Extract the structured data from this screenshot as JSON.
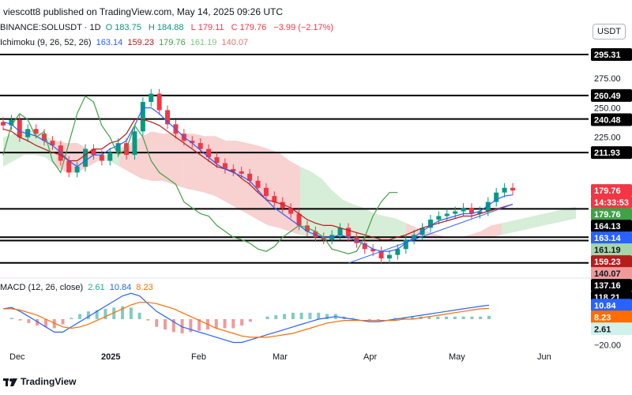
{
  "header": {
    "published": "viescott8 published on TradingView.com, May 14, 2025 09:26 UTC",
    "symbol": "BINANCE:SOLUSDT · 1D",
    "ohlc": {
      "o_label": "O",
      "o": "183.75",
      "h_label": "H",
      "h": "184.88",
      "l_label": "L",
      "l": "179.11",
      "c_label": "C",
      "c": "179.76",
      "chg": "−3.99 (−2.17%)"
    },
    "ichimoku": {
      "label": "Ichimoku (9, 26, 52, 26)",
      "v1": "163.14",
      "v2": "159.23",
      "v3": "179.76",
      "v4": "161.19",
      "v5": "140.07"
    },
    "currency": "USDT"
  },
  "colors": {
    "up": "#089981",
    "down": "#f23645",
    "conversion": "#2962ff",
    "base": "#b71c1c",
    "lagging": "#43a047",
    "spanA": "#a5d6a7",
    "spanB": "#ef9a9a",
    "macd": "#2962ff",
    "signal": "#ff6d00",
    "hline": "#000000",
    "trend": "#2962ff"
  },
  "chart_data": [
    {
      "type": "candlestick",
      "title": "BINANCE:SOLUSDT · 1D",
      "x_labels": [
        "Dec",
        "2025",
        "Feb",
        "Mar",
        "Apr",
        "May",
        "Jun"
      ],
      "y_ticks": [
        275,
        250,
        225
      ],
      "ylim": [
        110,
        300
      ],
      "horizontal_levels": [
        295.31,
        260.49,
        240.48,
        211.93,
        164.13,
        140.07,
        137.16,
        118.21
      ],
      "price_labels": [
        {
          "text": "295.31",
          "value": 295.31,
          "color": "#000000"
        },
        {
          "text": "275.00",
          "value": 275,
          "color": "none"
        },
        {
          "text": "260.49",
          "value": 260.49,
          "color": "#000000"
        },
        {
          "text": "250.00",
          "value": 250,
          "color": "none"
        },
        {
          "text": "240.48",
          "value": 240.48,
          "color": "#000000"
        },
        {
          "text": "225.00",
          "value": 225,
          "color": "none"
        },
        {
          "text": "211.93",
          "value": 211.93,
          "color": "#000000"
        },
        {
          "text": "179.76",
          "value": 179.76,
          "color": "#f23645"
        },
        {
          "text": "14:33:53",
          "value": 179.76,
          "color": "#f23645"
        },
        {
          "text": "179.76",
          "value": 179.76,
          "color": "#43a047"
        },
        {
          "text": "164.13",
          "value": 164.13,
          "color": "#000000"
        },
        {
          "text": "163.14",
          "value": 163.14,
          "color": "#2962ff"
        },
        {
          "text": "161.19",
          "value": 161.19,
          "color": "#a5d6a7"
        },
        {
          "text": "159.23",
          "value": 159.23,
          "color": "#b71c1c"
        },
        {
          "text": "140.07",
          "value": 140.07,
          "color": "#ef9a9a"
        },
        {
          "text": "137.16",
          "value": 137.16,
          "color": "#000000"
        },
        {
          "text": "118.21",
          "value": 118.21,
          "color": "#000000"
        }
      ],
      "close_series": [
        235,
        240,
        225,
        232,
        228,
        222,
        218,
        205,
        195,
        200,
        215,
        210,
        205,
        212,
        220,
        210,
        230,
        255,
        262,
        248,
        236,
        228,
        222,
        220,
        215,
        208,
        203,
        198,
        196,
        194,
        188,
        182,
        175,
        170,
        165,
        160,
        150,
        145,
        140,
        138,
        142,
        148,
        140,
        135,
        130,
        128,
        122,
        125,
        130,
        138,
        142,
        148,
        155,
        158,
        160,
        162,
        165,
        160,
        162,
        170,
        178,
        182,
        179.76
      ],
      "ichimoku": {
        "conversion": [
          238,
          236,
          230,
          228,
          226,
          222,
          218,
          212,
          205,
          200,
          205,
          210,
          210,
          215,
          218,
          222,
          235,
          250,
          250,
          245,
          238,
          232,
          225,
          220,
          214,
          208,
          202,
          198,
          195,
          192,
          188,
          180,
          172,
          165,
          160,
          155,
          150,
          145,
          142,
          140,
          140,
          142,
          140,
          137,
          134,
          130,
          128,
          128,
          130,
          135,
          140,
          145,
          150,
          154,
          156,
          158,
          160,
          160,
          162,
          167,
          172,
          175,
          176
        ],
        "base": [
          232,
          230,
          225,
          222,
          218,
          215,
          212,
          210,
          205,
          205,
          210,
          215,
          215,
          220,
          222,
          228,
          240,
          240,
          238,
          235,
          230,
          225,
          220,
          215,
          210,
          205,
          200,
          198,
          196,
          190,
          185,
          178,
          172,
          170,
          168,
          165,
          160,
          155,
          152,
          150,
          150,
          148,
          146,
          144,
          142,
          140,
          138,
          138,
          140,
          142,
          145,
          148,
          150,
          152,
          154,
          156,
          158,
          158,
          160,
          162,
          164,
          166,
          168
        ],
        "lagging": [
          210,
          235,
          245,
          240,
          225,
          230,
          205,
          195,
          220,
          245,
          260,
          255,
          235,
          225,
          210,
          215,
          235,
          225,
          205,
          195,
          190,
          185,
          170,
          165,
          160,
          158,
          150,
          145,
          140,
          138,
          135,
          130,
          128,
          132,
          140,
          145,
          150,
          148,
          145,
          140,
          130,
          128,
          126,
          128,
          140,
          158,
          170,
          178,
          178,
          null,
          null,
          null,
          null,
          null,
          null,
          null,
          null,
          null,
          null,
          null,
          null,
          null,
          null
        ],
        "spanA": [
          null,
          null,
          null,
          null,
          null,
          null,
          null,
          null,
          null,
          null,
          null,
          null,
          null,
          null,
          null,
          null,
          null,
          null,
          null,
          null,
          null,
          null,
          null,
          null,
          null,
          null,
          null,
          null,
          null,
          null,
          null,
          null,
          null,
          null,
          null,
          null,
          null,
          null,
          null,
          null,
          null,
          null,
          null,
          null,
          null,
          null,
          null,
          null,
          null,
          null,
          null,
          null,
          null,
          null,
          null,
          null,
          null,
          null,
          null,
          null,
          null,
          null,
          null
        ],
        "spanB": [
          null
        ]
      },
      "cloud_upper": [
        225,
        228,
        232,
        230,
        226,
        222,
        220,
        220,
        215,
        210,
        210,
        215,
        220,
        225,
        230,
        228,
        228,
        228,
        228,
        226,
        226,
        222,
        222,
        220,
        218,
        215,
        212,
        205,
        200,
        196,
        190,
        180,
        172,
        168,
        165,
        160,
        158,
        156,
        152,
        148,
        145,
        142,
        140,
        140,
        142,
        145,
        150,
        152,
        154,
        156,
        158,
        160,
        162,
        164,
        166
      ],
      "cloud_lower": [
        200,
        205,
        210,
        210,
        208,
        200,
        195,
        195,
        200,
        205,
        205,
        200,
        195,
        190,
        188,
        188,
        185,
        182,
        180,
        178,
        175,
        170,
        165,
        160,
        155,
        150,
        148,
        145,
        142,
        140,
        138,
        138,
        138,
        138,
        138,
        138,
        140,
        140,
        140,
        140,
        140,
        140,
        140,
        140,
        140,
        140,
        140,
        142,
        144,
        146,
        148,
        150,
        152,
        154,
        156
      ],
      "cloud_green_mask": [
        1,
        1,
        1,
        1,
        1,
        0,
        0,
        0,
        0,
        1,
        1,
        0,
        0,
        0,
        0,
        0,
        0,
        0,
        0,
        0,
        0,
        0,
        0,
        0,
        0,
        0,
        0,
        0,
        1,
        1,
        1,
        1,
        1,
        1,
        1,
        1,
        1,
        1,
        0,
        0,
        0,
        0,
        0,
        0,
        0,
        0,
        0,
        1,
        1,
        1,
        1,
        1,
        1,
        1,
        1
      ],
      "trendline": [
        [
          42,
          118
        ],
        [
          62,
          168
        ]
      ]
    },
    {
      "type": "line",
      "title": "MACD (12, 26, close)",
      "series": [
        {
          "name": "MACD",
          "values": [
            8,
            9,
            6,
            2,
            -2,
            -6,
            -10,
            -10,
            -6,
            -2,
            2,
            6,
            10,
            14,
            18,
            20,
            18,
            12,
            6,
            2,
            -2,
            -6,
            -8,
            -10,
            -12,
            -14,
            -16,
            -18,
            -18,
            -16,
            -14,
            -12,
            -10,
            -8,
            -6,
            -4,
            -2,
            0,
            1,
            2,
            1,
            0,
            -1,
            -2,
            -2,
            -1,
            0,
            1,
            2,
            3,
            4,
            5,
            6,
            7,
            8,
            9,
            10,
            10.84
          ]
        },
        {
          "name": "Signal",
          "values": [
            8,
            8,
            7,
            5,
            3,
            0,
            -3,
            -6,
            -7,
            -6,
            -4,
            -1,
            2,
            5,
            8,
            11,
            13,
            13,
            12,
            10,
            8,
            5,
            2,
            -1,
            -4,
            -7,
            -9,
            -11,
            -13,
            -14,
            -14,
            -14,
            -13,
            -12,
            -11,
            -9,
            -7,
            -5,
            -3,
            -2,
            -1,
            -1,
            -1,
            -1,
            -1,
            -1,
            -1,
            0,
            0,
            1,
            2,
            3,
            4,
            5,
            6,
            7,
            8,
            8.23
          ]
        }
      ],
      "histogram_last": "2.61",
      "labels": {
        "macd": "10.84",
        "signal": "8.23",
        "hist": "2.61"
      },
      "y_ticks": [
        -20
      ],
      "ylim": [
        -22,
        22
      ],
      "price_labels": [
        {
          "text": "10.84",
          "value": 10.84,
          "color": "#2962ff"
        },
        {
          "text": "8.23",
          "value": 8.23,
          "color": "#ff6d00"
        },
        {
          "text": "2.61",
          "value": 2.61,
          "color": "#d1f2eb"
        },
        {
          "text": "−20.00",
          "value": -20,
          "color": "none"
        }
      ]
    }
  ],
  "footer": {
    "brand": "TradingView"
  }
}
